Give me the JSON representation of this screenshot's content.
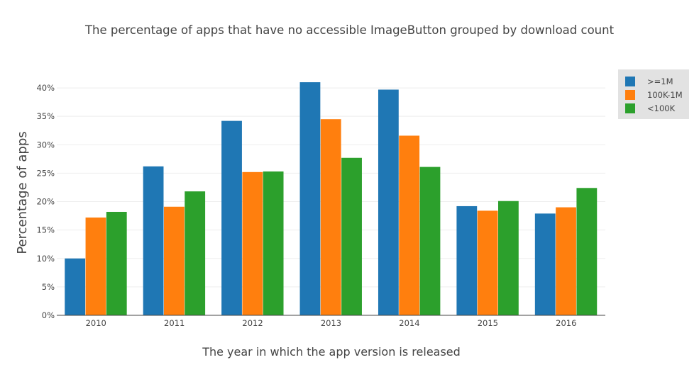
{
  "chart_data": {
    "type": "bar",
    "title": "The percentage of apps that have no accessible ImageButton grouped by download count",
    "xlabel": "The year in which the app version is released",
    "ylabel": "Percentage of apps",
    "categories": [
      "2010",
      "2011",
      "2012",
      "2013",
      "2014",
      "2015",
      "2016"
    ],
    "yticks": [
      "0%",
      "5%",
      "10%",
      "15%",
      "20%",
      "25%",
      "30%",
      "35%",
      "40%"
    ],
    "ylim": [
      0,
      40
    ],
    "grid": true,
    "legend_position": "top-right",
    "series": [
      {
        "name": ">=1M",
        "color": "#1f77b4",
        "values": [
          10.0,
          26.2,
          34.2,
          41.0,
          39.7,
          19.2,
          17.9
        ]
      },
      {
        "name": "100K-1M",
        "color": "#ff7f0e",
        "values": [
          17.2,
          19.1,
          25.2,
          34.5,
          31.6,
          18.4,
          19.0
        ]
      },
      {
        "name": "<100K",
        "color": "#2ca02c",
        "values": [
          18.2,
          21.8,
          25.3,
          27.7,
          26.1,
          20.1,
          22.4
        ]
      }
    ]
  }
}
